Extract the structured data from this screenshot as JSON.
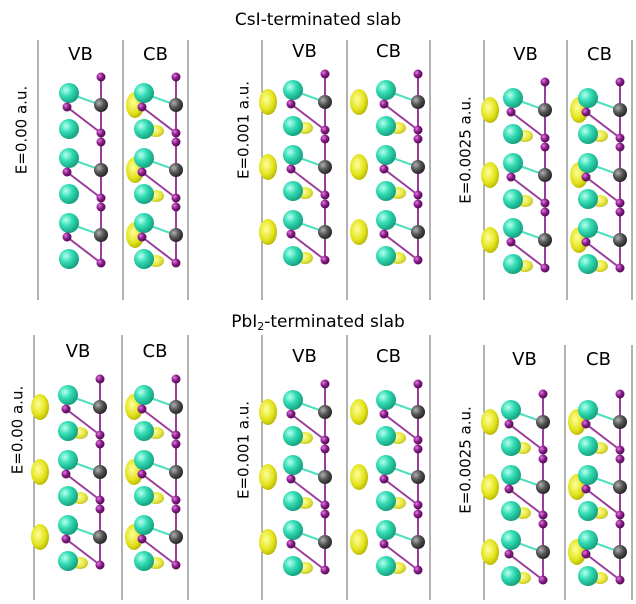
{
  "sections": [
    {
      "title": [
        "CsI-terminated slab"
      ],
      "panels": [
        {
          "field": "E=0.00 a.u.",
          "left": "VB",
          "right": "CB"
        },
        {
          "field": "E=0.001 a.u.",
          "left": "VB",
          "right": "CB"
        },
        {
          "field": "E=0.0025 a.u.",
          "left": "VB",
          "right": "CB"
        }
      ]
    },
    {
      "title": [
        "PbI",
        "2",
        "-terminated slab"
      ],
      "panels": [
        {
          "field": "E=0.00 a.u.",
          "left": "VB",
          "right": "CB"
        },
        {
          "field": "E=0.001 a.u.",
          "left": "VB",
          "right": "CB"
        },
        {
          "field": "E=0.0025 a.u.",
          "left": "VB",
          "right": "CB"
        }
      ]
    }
  ]
}
